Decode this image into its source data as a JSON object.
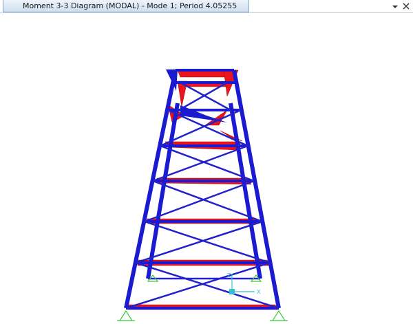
{
  "window": {
    "tab_title": "Moment 3-3 Diagram (MODAL) - Mode 1; Period 4.05255"
  },
  "axes": {
    "z_label": "Z",
    "x_label": "X"
  }
}
